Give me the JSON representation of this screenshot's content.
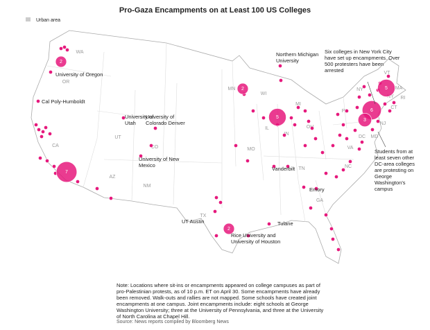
{
  "title": "Pro-Gaza Encampments on at Least 100 US Colleges",
  "legend": {
    "label": "Urban area"
  },
  "state_labels": [
    "WA",
    "OR",
    "CA",
    "UT",
    "CO",
    "AZ",
    "NM",
    "TX",
    "MN",
    "WI",
    "IL",
    "MI",
    "IN",
    "OH",
    "MO",
    "TN",
    "NC",
    "VA",
    "GA",
    "PA",
    "NY",
    "NY",
    "VT",
    "MA",
    "CT",
    "RI",
    "NJ",
    "DC",
    "MD"
  ],
  "bubbles": [
    2,
    7,
    2,
    5,
    2,
    5,
    6,
    3
  ],
  "college_labels": [
    "University of Oregon",
    "Cal Poly-Humboldt",
    "University of Utah",
    "University of Colorado Denver",
    "University of New Mexico",
    "UT Austin",
    "Rice University and University of Houston",
    "Tulane",
    "Vanderbilt",
    "Emory",
    "Northern Michigan University"
  ],
  "annotations": {
    "nyc": "Six colleges in New York City have set up encampments. Over 500 protesters have been arrested",
    "dc": "Students from at least seven other DC-area colleges are protesting on George Washington's campus"
  },
  "note": "Note: Locations where sit-ins or encampments appeared on college campuses as part of pro-Palestinian protests, as of 10 p.m. ET on April 30. Some encampments have already been removed. Walk-outs and rallies are not mapped. Some schools have created joint encampments at one campus. Joint encampments include: eight schools at George Washington University; three at the University of Pennsylvania, and three at the University of North Carolina at Chapel Hill.",
  "source": "Source: News reports compiled by Bloomberg News"
}
